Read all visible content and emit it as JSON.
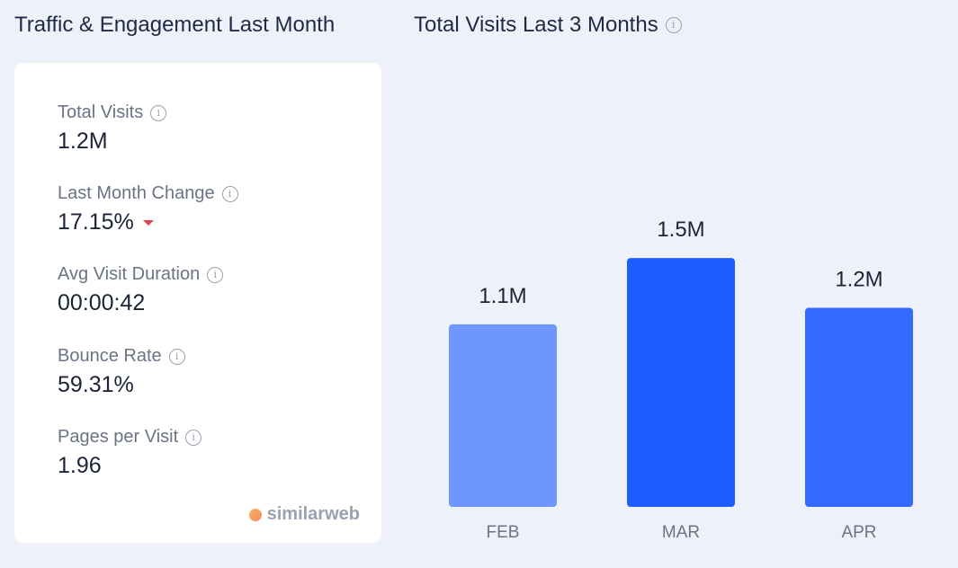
{
  "left_panel": {
    "title": "Traffic & Engagement Last Month",
    "metrics": [
      {
        "label": "Total Visits",
        "value": "1.2M"
      },
      {
        "label": "Last Month Change",
        "value": "17.15%",
        "trend": "down"
      },
      {
        "label": "Avg Visit Duration",
        "value": "00:00:42"
      },
      {
        "label": "Bounce Rate",
        "value": "59.31%"
      },
      {
        "label": "Pages per Visit",
        "value": "1.96"
      }
    ],
    "brand": "similarweb"
  },
  "right_panel": {
    "title": "Total Visits Last 3 Months"
  },
  "icons": {
    "info": "info-icon",
    "trend_down": "triangle-down-icon",
    "brand_logo": "similarweb-logo-icon"
  },
  "colors": {
    "accent": "#1d5cff",
    "bar_light": "#6f97fb",
    "bar_mid": "#3469fd",
    "trend_down": "#e3434f"
  },
  "chart_data": {
    "type": "bar",
    "categories": [
      "FEB",
      "MAR",
      "APR"
    ],
    "values": [
      1.1,
      1.5,
      1.2
    ],
    "value_labels": [
      "1.1M",
      "1.5M",
      "1.2M"
    ],
    "unit": "M",
    "bar_colors": [
      "#6f97fb",
      "#1d5cff",
      "#3469fd"
    ],
    "ylim": [
      0,
      2.73
    ],
    "grid": false,
    "legend": "none"
  }
}
